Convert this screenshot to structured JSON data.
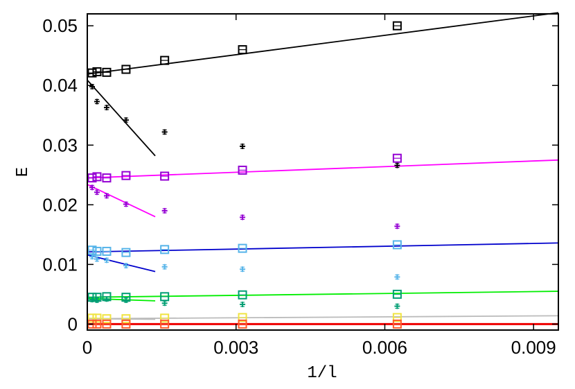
{
  "chart_data": {
    "type": "scatter",
    "title": "",
    "xlabel": "1/l",
    "ylabel": "E",
    "xlim": [
      0,
      0.0095
    ],
    "ylim": [
      -0.001,
      0.052
    ],
    "x_ticks": [
      0,
      0.003,
      0.006,
      0.009
    ],
    "x_tick_labels": [
      "0",
      "0.003",
      "0.006",
      "0.009"
    ],
    "y_ticks": [
      0,
      0.01,
      0.02,
      0.03,
      0.04,
      0.05
    ],
    "y_tick_labels": [
      "0",
      "0.01",
      "0.02",
      "0.03",
      "0.04",
      "0.05"
    ],
    "grid": false,
    "legend": "none",
    "x": [
      9.77e-05,
      0.000195,
      0.000391,
      0.000781,
      0.00156,
      0.00313,
      0.00625
    ],
    "series": [
      {
        "marker": "square",
        "color": "#000000",
        "y": [
          0.0421,
          0.0423,
          0.0422,
          0.0427,
          0.0442,
          0.046,
          0.05
        ]
      },
      {
        "marker": "cross",
        "color": "#000000",
        "y": [
          0.0398,
          0.0373,
          0.0363,
          0.0342,
          0.0322,
          0.0298,
          0.0266
        ]
      },
      {
        "marker": "square",
        "color": "#9400d3",
        "y": [
          0.0245,
          0.0247,
          0.0245,
          0.0249,
          0.0248,
          0.0258,
          0.0278
        ]
      },
      {
        "marker": "cross",
        "color": "#9400d3",
        "y": [
          0.0229,
          0.0221,
          0.0215,
          0.0201,
          0.019,
          0.0179,
          0.0164
        ]
      },
      {
        "marker": "square",
        "color": "#56b4e9",
        "y": [
          0.0124,
          0.0122,
          0.0122,
          0.012,
          0.0125,
          0.0127,
          0.0133
        ]
      },
      {
        "marker": "cross",
        "color": "#56b4e9",
        "y": [
          0.0113,
          0.0109,
          0.0107,
          0.0098,
          0.0096,
          0.0092,
          0.0079
        ]
      },
      {
        "marker": "square",
        "color": "#009e73",
        "y": [
          0.0045,
          0.0045,
          0.0046,
          0.0045,
          0.0046,
          0.0049,
          0.005
        ]
      },
      {
        "marker": "cross",
        "color": "#009e73",
        "y": [
          0.0041,
          0.004,
          0.0042,
          0.004,
          0.0035,
          0.0033,
          0.003
        ]
      },
      {
        "marker": "square",
        "color": "#f0e442",
        "y": [
          0.001,
          0.001,
          0.0009,
          0.0009,
          0.001,
          0.0011,
          0.0011
        ]
      },
      {
        "marker": "square",
        "color": "#ff5a2a",
        "y": [
          0.0,
          0.0,
          0.0,
          0.0,
          0.0,
          0.0,
          0.0
        ]
      }
    ],
    "fit_lines": [
      {
        "color": "#000000",
        "x": [
          0,
          0.0095
        ],
        "y": [
          0.0419,
          0.0522
        ]
      },
      {
        "color": "#000000",
        "x": [
          0,
          0.00137
        ],
        "y": [
          0.0409,
          0.0282
        ]
      },
      {
        "color": "#ff00ff",
        "x": [
          0,
          0.0095
        ],
        "y": [
          0.0245,
          0.0275
        ]
      },
      {
        "color": "#ff00ff",
        "x": [
          0,
          0.00137
        ],
        "y": [
          0.0234,
          0.018
        ]
      },
      {
        "color": "#0000cc",
        "x": [
          0,
          0.0095
        ],
        "y": [
          0.0121,
          0.0136
        ]
      },
      {
        "color": "#0000cc",
        "x": [
          0,
          0.00137
        ],
        "y": [
          0.0116,
          0.0088
        ]
      },
      {
        "color": "#00ee00",
        "x": [
          0,
          0.0095
        ],
        "y": [
          0.0045,
          0.0055
        ]
      },
      {
        "color": "#00ee00",
        "x": [
          0,
          0.00137
        ],
        "y": [
          0.0043,
          0.0039
        ]
      },
      {
        "color": "#bbbbbb",
        "x": [
          0,
          0.0095
        ],
        "y": [
          0.0009,
          0.0014
        ]
      },
      {
        "color": "#bbbbbb",
        "x": [
          0,
          0.00137
        ],
        "y": [
          0.0009,
          0.0008
        ]
      },
      {
        "color": "#ee0000",
        "x": [
          0,
          0.0095
        ],
        "y": [
          0.0,
          0.0
        ]
      }
    ]
  }
}
